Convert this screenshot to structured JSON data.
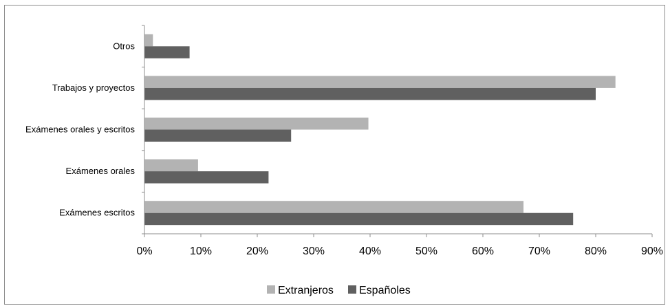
{
  "chart_data": {
    "type": "bar",
    "orientation": "horizontal",
    "categories": [
      "Otros",
      "Trabajos  y proyectos",
      "Exámenes orales y escritos",
      "Exámenes orales",
      "Exámenes escritos"
    ],
    "series": [
      {
        "name": "Extranjeros",
        "color": "#b3b3b3",
        "values": [
          1.5,
          83.5,
          39.7,
          9.5,
          67.2
        ]
      },
      {
        "name": "Españoles",
        "color": "#606060",
        "values": [
          8,
          80,
          26,
          22,
          76
        ]
      }
    ],
    "xlim": [
      0,
      90
    ],
    "xticks": [
      "0%",
      "10%",
      "20%",
      "30%",
      "40%",
      "50%",
      "60%",
      "70%",
      "80%",
      "90%"
    ],
    "grid": false,
    "legend": "bottom"
  }
}
